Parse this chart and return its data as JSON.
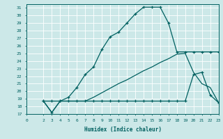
{
  "xlabel": "Humidex (Indice chaleur)",
  "bg_color": "#cce8e8",
  "grid_color": "#ffffff",
  "line_color": "#006060",
  "xlim": [
    0,
    23
  ],
  "ylim": [
    17,
    31.5
  ],
  "xticks": [
    0,
    2,
    3,
    4,
    5,
    6,
    7,
    8,
    9,
    10,
    11,
    12,
    13,
    14,
    15,
    16,
    17,
    18,
    19,
    20,
    21,
    22,
    23
  ],
  "yticks": [
    17,
    18,
    19,
    20,
    21,
    22,
    23,
    24,
    25,
    26,
    27,
    28,
    29,
    30,
    31
  ],
  "line1_x": [
    2,
    3,
    4,
    5,
    6,
    7,
    8,
    9,
    10,
    11,
    12,
    13,
    14,
    15,
    16,
    17,
    18,
    19,
    20,
    21,
    22,
    23
  ],
  "line1_y": [
    18.7,
    18.7,
    18.7,
    19.2,
    20.5,
    22.2,
    23.2,
    25.5,
    27.2,
    27.8,
    29.0,
    30.2,
    31.1,
    31.1,
    31.1,
    29.0,
    25.2,
    25.2,
    25.2,
    25.2,
    25.2,
    25.2
  ],
  "line2_x": [
    2,
    3,
    4,
    5,
    6,
    7,
    8,
    9,
    10,
    11,
    12,
    13,
    14,
    15,
    16,
    17,
    18,
    19,
    20,
    21,
    22,
    23
  ],
  "line2_y": [
    18.7,
    17.2,
    18.7,
    18.7,
    18.7,
    18.7,
    18.7,
    18.7,
    18.7,
    18.7,
    18.7,
    18.7,
    18.7,
    18.7,
    18.7,
    18.7,
    18.7,
    18.7,
    22.2,
    22.5,
    19.5,
    18.5
  ],
  "line3_x": [
    2,
    3,
    4,
    5,
    6,
    7,
    8,
    9,
    10,
    11,
    12,
    13,
    14,
    15,
    16,
    17,
    18,
    19,
    20,
    21,
    22,
    23
  ],
  "line3_y": [
    18.7,
    17.2,
    18.7,
    18.7,
    18.7,
    18.7,
    19.2,
    19.8,
    20.4,
    21.0,
    21.5,
    22.1,
    22.7,
    23.2,
    23.8,
    24.3,
    24.9,
    25.0,
    22.5,
    21.0,
    20.5,
    18.5
  ]
}
